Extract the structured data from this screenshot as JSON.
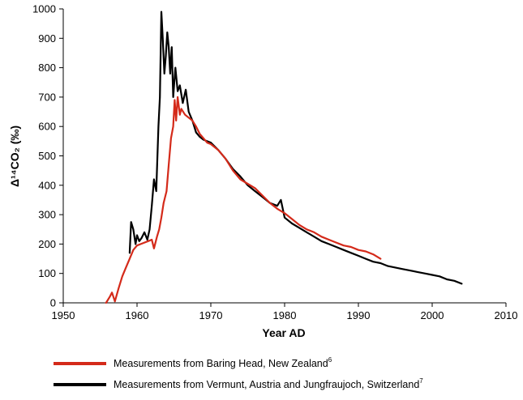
{
  "chart_data": {
    "type": "line",
    "xlabel": "Year AD",
    "ylabel": "Δ¹⁴CO₂ (‰)",
    "xlim": [
      1950,
      2010
    ],
    "ylim": [
      0,
      1000
    ],
    "x_ticks": [
      "1950",
      "1960",
      "1970",
      "1980",
      "1990",
      "2000",
      "2010"
    ],
    "y_ticks": [
      "0",
      "100",
      "200",
      "300",
      "400",
      "500",
      "600",
      "700",
      "800",
      "900",
      "1000"
    ],
    "grid": false,
    "legend_position": "bottom",
    "series": [
      {
        "name": "Measurements from Baring Head, New Zealand",
        "footnote": "6",
        "color": "#d42a1a",
        "x": [
          1955.8,
          1956.3,
          1956.6,
          1957.0,
          1957.5,
          1958.0,
          1958.5,
          1959.0,
          1959.5,
          1960.0,
          1960.5,
          1961.0,
          1961.5,
          1962.0,
          1962.3,
          1962.7,
          1963.0,
          1963.3,
          1963.6,
          1964.0,
          1964.3,
          1964.6,
          1964.9,
          1965.1,
          1965.3,
          1965.5,
          1965.8,
          1966.0,
          1966.5,
          1967.0,
          1967.5,
          1968.0,
          1968.5,
          1969.0,
          1969.5,
          1970.0,
          1971.0,
          1972.0,
          1973.0,
          1974.0,
          1975.0,
          1976.0,
          1977.0,
          1978.0,
          1979.0,
          1980.0,
          1981.0,
          1982.0,
          1983.0,
          1984.0,
          1985.0,
          1986.0,
          1987.0,
          1988.0,
          1989.0,
          1990.0,
          1991.0,
          1992.0,
          1993.0
        ],
        "y": [
          0,
          20,
          35,
          5,
          50,
          90,
          120,
          150,
          180,
          195,
          200,
          205,
          210,
          215,
          185,
          225,
          250,
          290,
          340,
          380,
          470,
          560,
          600,
          690,
          620,
          700,
          640,
          660,
          640,
          630,
          620,
          600,
          575,
          560,
          545,
          540,
          520,
          490,
          450,
          420,
          405,
          390,
          365,
          340,
          320,
          305,
          285,
          265,
          250,
          240,
          225,
          215,
          205,
          195,
          190,
          180,
          175,
          165,
          150
        ]
      },
      {
        "name": "Measurements from Vermunt, Austria and Jungfraujoch, Switzerland",
        "footnote": "7",
        "color": "#000000",
        "x": [
          1959.0,
          1959.2,
          1959.5,
          1959.8,
          1960.0,
          1960.3,
          1960.6,
          1961.0,
          1961.4,
          1961.7,
          1962.0,
          1962.3,
          1962.6,
          1962.9,
          1963.1,
          1963.3,
          1963.5,
          1963.7,
          1963.9,
          1964.1,
          1964.3,
          1964.5,
          1964.7,
          1964.9,
          1965.2,
          1965.5,
          1965.8,
          1966.2,
          1966.6,
          1967.0,
          1967.5,
          1968.0,
          1968.5,
          1969.0,
          1970.0,
          1971.0,
          1972.0,
          1973.0,
          1974.0,
          1975.0,
          1976.0,
          1977.0,
          1978.0,
          1979.0,
          1979.5,
          1980.0,
          1981.0,
          1982.0,
          1983.0,
          1984.0,
          1985.0,
          1986.0,
          1987.0,
          1988.0,
          1989.0,
          1990.0,
          1991.0,
          1992.0,
          1993.0,
          1994.0,
          1995.0,
          1996.0,
          1997.0,
          1998.0,
          1999.0,
          2000.0,
          2001.0,
          2002.0,
          2003.0,
          2004.0
        ],
        "y": [
          170,
          275,
          250,
          200,
          230,
          210,
          220,
          240,
          215,
          250,
          330,
          420,
          380,
          600,
          700,
          990,
          890,
          780,
          840,
          920,
          870,
          780,
          870,
          700,
          800,
          720,
          740,
          680,
          725,
          650,
          620,
          580,
          565,
          555,
          545,
          520,
          490,
          455,
          430,
          400,
          380,
          360,
          340,
          330,
          350,
          290,
          270,
          255,
          240,
          225,
          210,
          200,
          190,
          180,
          170,
          160,
          150,
          140,
          135,
          125,
          120,
          115,
          110,
          105,
          100,
          95,
          90,
          80,
          75,
          65
        ]
      }
    ]
  }
}
